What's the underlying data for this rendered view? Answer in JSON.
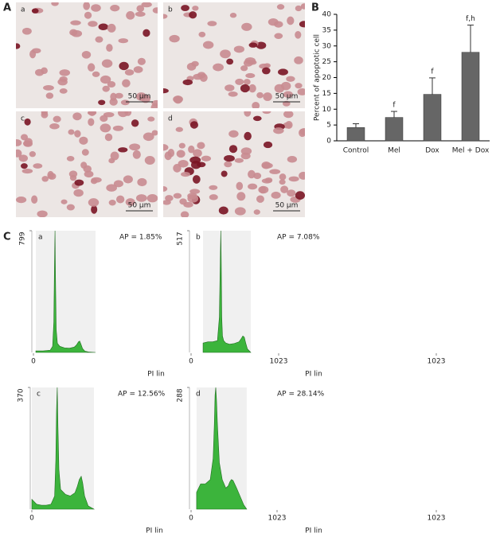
{
  "panel_labels": [
    "A",
    "B",
    "C"
  ],
  "micrographs": [
    {
      "label": "a",
      "scale_bar": "50 μm"
    },
    {
      "label": "b",
      "scale_bar": "50 μm"
    },
    {
      "label": "c",
      "scale_bar": "50 μm"
    },
    {
      "label": "d",
      "scale_bar": "50 μm"
    }
  ],
  "chart_data": [
    {
      "type": "bar",
      "ylabel": "Percent of apoptotic cell",
      "categories": [
        "Control",
        "Mel",
        "Dox",
        "Mel + Dox"
      ],
      "values": [
        4.2,
        7.4,
        14.7,
        28
      ],
      "errors": [
        1.2,
        1.9,
        5.2,
        8.6
      ],
      "annotations": [
        null,
        "f",
        "f",
        "f,h"
      ],
      "color": "#666666",
      "ylim": [
        0,
        40
      ],
      "yticks": [
        0,
        5,
        10,
        15,
        20,
        25,
        30,
        35,
        40
      ]
    },
    {
      "type": "area",
      "label": "a",
      "annotation": "AP = 1.85%",
      "xlabel": "PI lin",
      "color": "#3cb43c",
      "x": [
        10,
        40,
        70,
        80,
        85,
        88,
        90,
        92,
        95,
        100,
        110,
        130,
        150,
        170,
        180,
        188,
        193,
        198,
        205,
        215,
        230,
        259
      ],
      "values": [
        10,
        10,
        15,
        40,
        200,
        600,
        799,
        500,
        150,
        60,
        40,
        30,
        28,
        35,
        50,
        70,
        75,
        55,
        25,
        8,
        3,
        0
      ],
      "gate": [
        10,
        259
      ],
      "xlim": [
        0,
        1023
      ],
      "xticks": [
        0,
        1023
      ],
      "ylim": [
        0,
        799
      ],
      "yticks": [
        799
      ]
    },
    {
      "type": "area",
      "label": "b",
      "annotation": "AP = 7.08%",
      "xlabel": "PI lin",
      "color": "#3cb43c",
      "x": [
        50,
        70,
        90,
        110,
        118,
        122,
        124,
        126,
        128,
        131,
        136,
        145,
        160,
        180,
        200,
        210,
        216,
        222,
        228,
        235,
        249
      ],
      "values": [
        40,
        45,
        45,
        50,
        150,
        400,
        517,
        380,
        150,
        70,
        50,
        40,
        35,
        38,
        45,
        60,
        70,
        65,
        40,
        15,
        0
      ],
      "gate": [
        50,
        249
      ],
      "xlim": [
        0,
        1023
      ],
      "xticks": [
        0,
        1023
      ],
      "ylim": [
        0,
        517
      ],
      "yticks": [
        517
      ]
    },
    {
      "type": "area",
      "label": "c",
      "annotation": "AP = 12.56%",
      "xlabel": "PI lin",
      "color": "#3cb43c",
      "x": [
        0,
        20,
        40,
        60,
        80,
        95,
        100,
        103,
        106,
        109,
        113,
        120,
        140,
        160,
        180,
        190,
        198,
        206,
        212,
        220,
        235,
        259
      ],
      "values": [
        30,
        15,
        12,
        12,
        15,
        40,
        150,
        300,
        370,
        250,
        120,
        60,
        45,
        40,
        50,
        70,
        90,
        100,
        80,
        40,
        10,
        0
      ],
      "gate": [
        0,
        259
      ],
      "xlim": [
        0,
        1023
      ],
      "xticks": [
        0,
        1023
      ],
      "ylim": [
        0,
        370
      ],
      "yticks": [
        370
      ]
    },
    {
      "type": "area",
      "label": "d",
      "annotation": "AP = 28.14%",
      "xlabel": "PI lin",
      "color": "#3cb43c",
      "x": [
        23,
        40,
        60,
        80,
        92,
        97,
        100,
        103,
        106,
        110,
        118,
        130,
        145,
        155,
        162,
        168,
        175,
        190,
        205,
        220,
        232
      ],
      "values": [
        40,
        60,
        60,
        70,
        120,
        200,
        270,
        288,
        260,
        200,
        110,
        70,
        50,
        55,
        65,
        70,
        68,
        50,
        30,
        10,
        0
      ],
      "gate": [
        23,
        232
      ],
      "xlim": [
        0,
        1023
      ],
      "xticks": [
        0,
        1023
      ],
      "ylim": [
        0,
        288
      ],
      "yticks": [
        288
      ]
    }
  ]
}
